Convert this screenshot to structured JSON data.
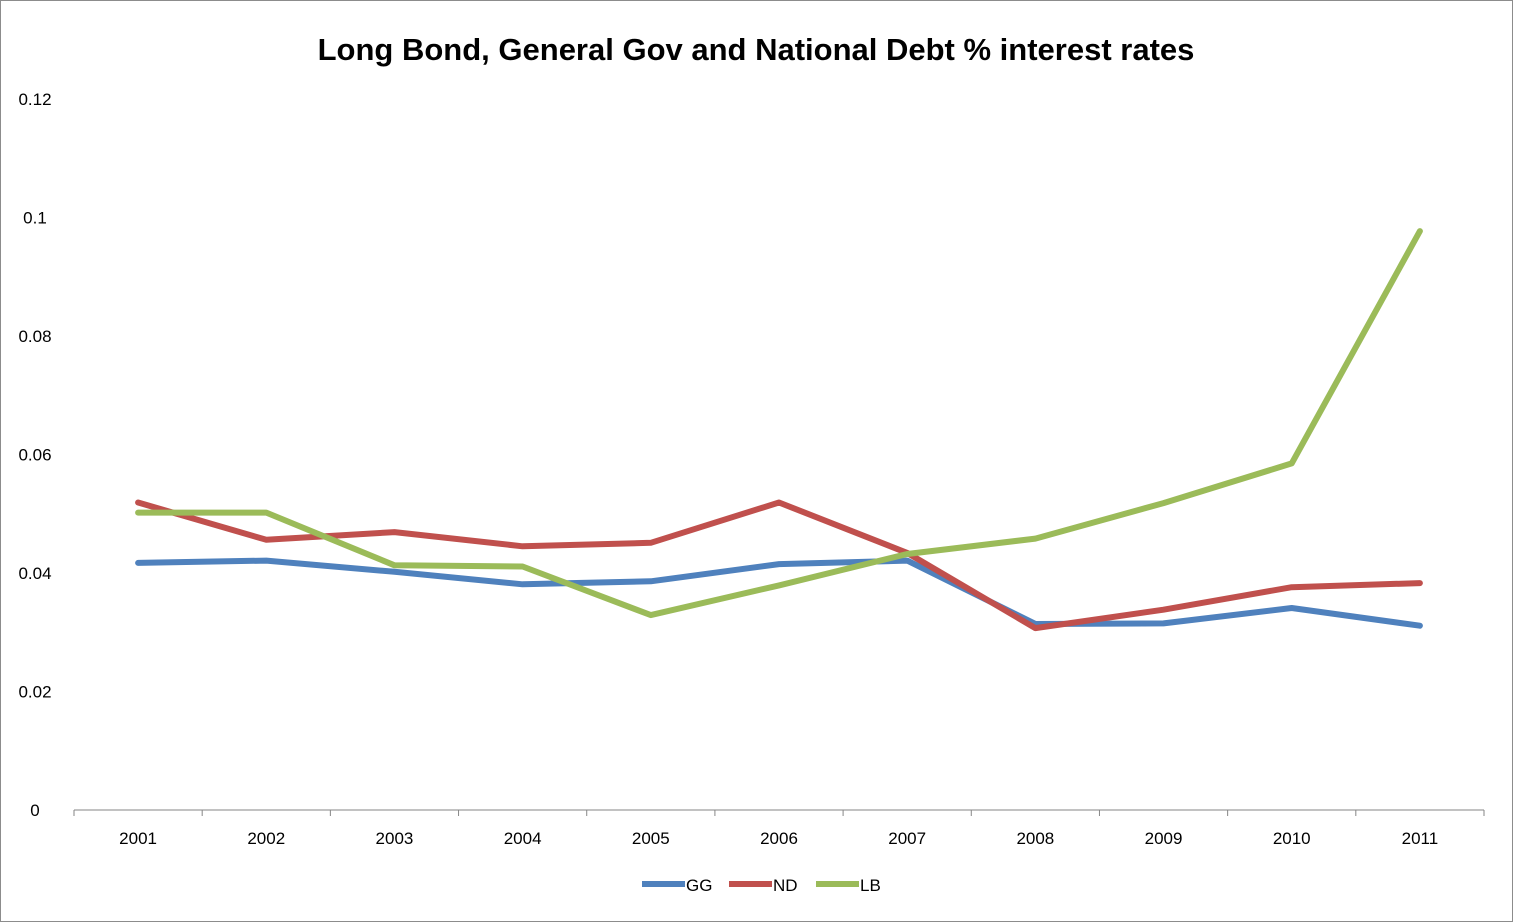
{
  "chart_data": {
    "type": "line",
    "title": "Long Bond, General Gov and National Debt % interest rates",
    "xlabel": "",
    "ylabel": "",
    "categories": [
      "2001",
      "2002",
      "2003",
      "2004",
      "2005",
      "2006",
      "2007",
      "2008",
      "2009",
      "2010",
      "2011"
    ],
    "ylim": [
      0,
      0.12
    ],
    "yticks": [
      0,
      0.02,
      0.04,
      0.06,
      0.08,
      0.1,
      0.12
    ],
    "ytick_labels": [
      "0",
      "0.02",
      "0.04",
      "0.06",
      "0.08",
      "0.1",
      "0.12"
    ],
    "grid": false,
    "legend_position": "bottom",
    "series": [
      {
        "name": "GG",
        "color": "#4f81bd",
        "values": [
          0.0417,
          0.0421,
          0.0402,
          0.0381,
          0.0386,
          0.0415,
          0.0421,
          0.0314,
          0.0315,
          0.0341,
          0.0311
        ]
      },
      {
        "name": "ND",
        "color": "#c0504d",
        "values": [
          0.0519,
          0.0456,
          0.0469,
          0.0445,
          0.0451,
          0.0519,
          0.0434,
          0.0307,
          0.0338,
          0.0376,
          0.0383
        ]
      },
      {
        "name": "LB",
        "color": "#9bbb59",
        "values": [
          0.0502,
          0.0502,
          0.0413,
          0.0411,
          0.0329,
          0.0379,
          0.0432,
          0.0458,
          0.0518,
          0.0585,
          0.0977
        ]
      }
    ]
  }
}
